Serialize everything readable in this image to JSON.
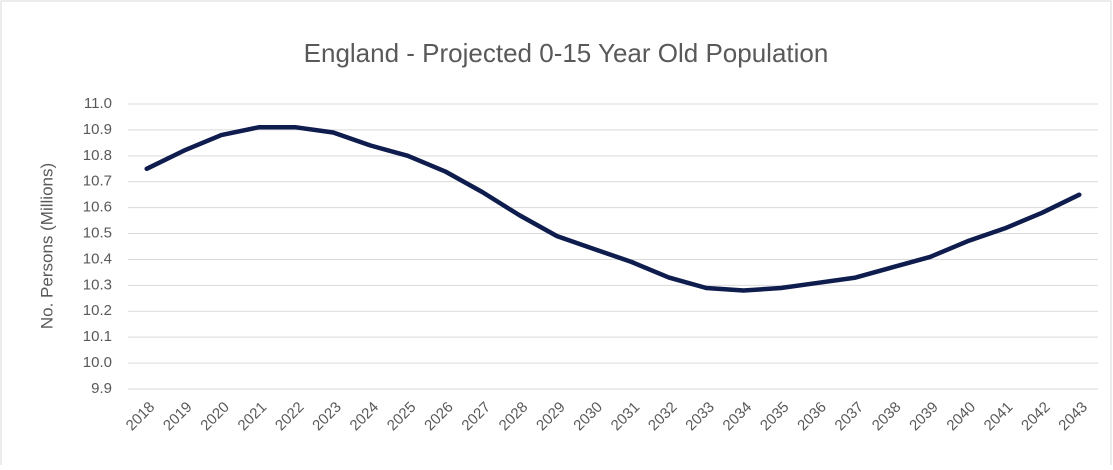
{
  "chart_data": {
    "type": "line",
    "title": "England - Projected 0-15 Year Old Population",
    "ylabel": "No. Persons (Millions)",
    "categories": [
      "2018",
      "2019",
      "2020",
      "2021",
      "2022",
      "2023",
      "2024",
      "2025",
      "2026",
      "2027",
      "2028",
      "2029",
      "2030",
      "2031",
      "2032",
      "2033",
      "2034",
      "2035",
      "2036",
      "2037",
      "2038",
      "2039",
      "2040",
      "2041",
      "2042",
      "2043"
    ],
    "series": [
      {
        "name": "England",
        "color": "#0e1c4e",
        "values": [
          10.75,
          10.82,
          10.88,
          10.91,
          10.91,
          10.89,
          10.84,
          10.8,
          10.74,
          10.66,
          10.57,
          10.49,
          10.44,
          10.39,
          10.33,
          10.29,
          10.28,
          10.29,
          10.31,
          10.33,
          10.37,
          10.41,
          10.47,
          10.52,
          10.58,
          10.65
        ]
      }
    ],
    "ylim": [
      9.9,
      11.0
    ],
    "yticks": [
      9.9,
      {
        "value": 10.0,
        "label": "10.0"
      },
      10.1,
      10.2,
      10.3,
      10.4,
      10.5,
      10.6,
      10.7,
      10.8,
      10.9,
      {
        "value": 11.0,
        "label": "11.0"
      }
    ],
    "grid": true
  }
}
